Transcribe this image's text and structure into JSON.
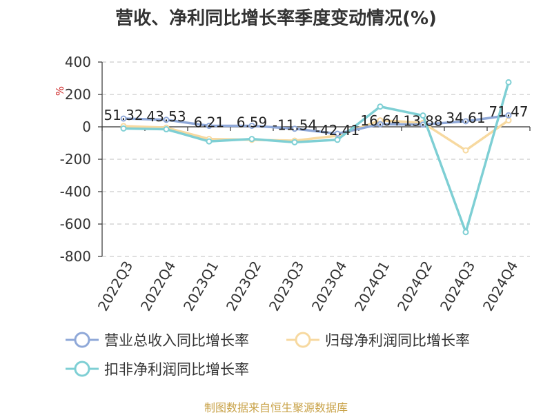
{
  "title": "营收、净利同比增长率季度变动情况(%)",
  "source": "制图数据来自恒生聚源数据库",
  "chart_data": {
    "type": "line",
    "title": "营收、净利同比增长率季度变动情况(%)",
    "ylabel": "%",
    "xlabel": "",
    "ylim": [
      -800,
      400
    ],
    "yticks": [
      400,
      200,
      0,
      -200,
      -400,
      -600,
      -800
    ],
    "grid": true,
    "legend_position": "bottom",
    "categories": [
      "2022Q3",
      "2022Q4",
      "2023Q1",
      "2023Q2",
      "2023Q3",
      "2023Q4",
      "2024Q1",
      "2024Q2",
      "2024Q3",
      "2024Q4"
    ],
    "series": [
      {
        "name": "营业总收入同比增长率",
        "color": "#8fa8d8",
        "values": [
          51.32,
          43.53,
          6.21,
          6.59,
          -11.54,
          -42.41,
          16.64,
          13.88,
          34.61,
          71.47
        ],
        "labels": [
          "51.32",
          "43.53",
          "6.21",
          "6.59",
          "-11.54",
          "-42.41",
          "16.64",
          "13.88",
          "34.61",
          "71.47"
        ]
      },
      {
        "name": "归母净利润同比增长率",
        "color": "#f7d9a0",
        "values": [
          5,
          -5,
          -75,
          -80,
          -85,
          -55,
          40,
          25,
          -145,
          40
        ]
      },
      {
        "name": "扣非净利润同比增长率",
        "color": "#7ecfd4",
        "values": [
          -10,
          -15,
          -90,
          -75,
          -95,
          -80,
          125,
          70,
          -650,
          275
        ]
      }
    ]
  }
}
